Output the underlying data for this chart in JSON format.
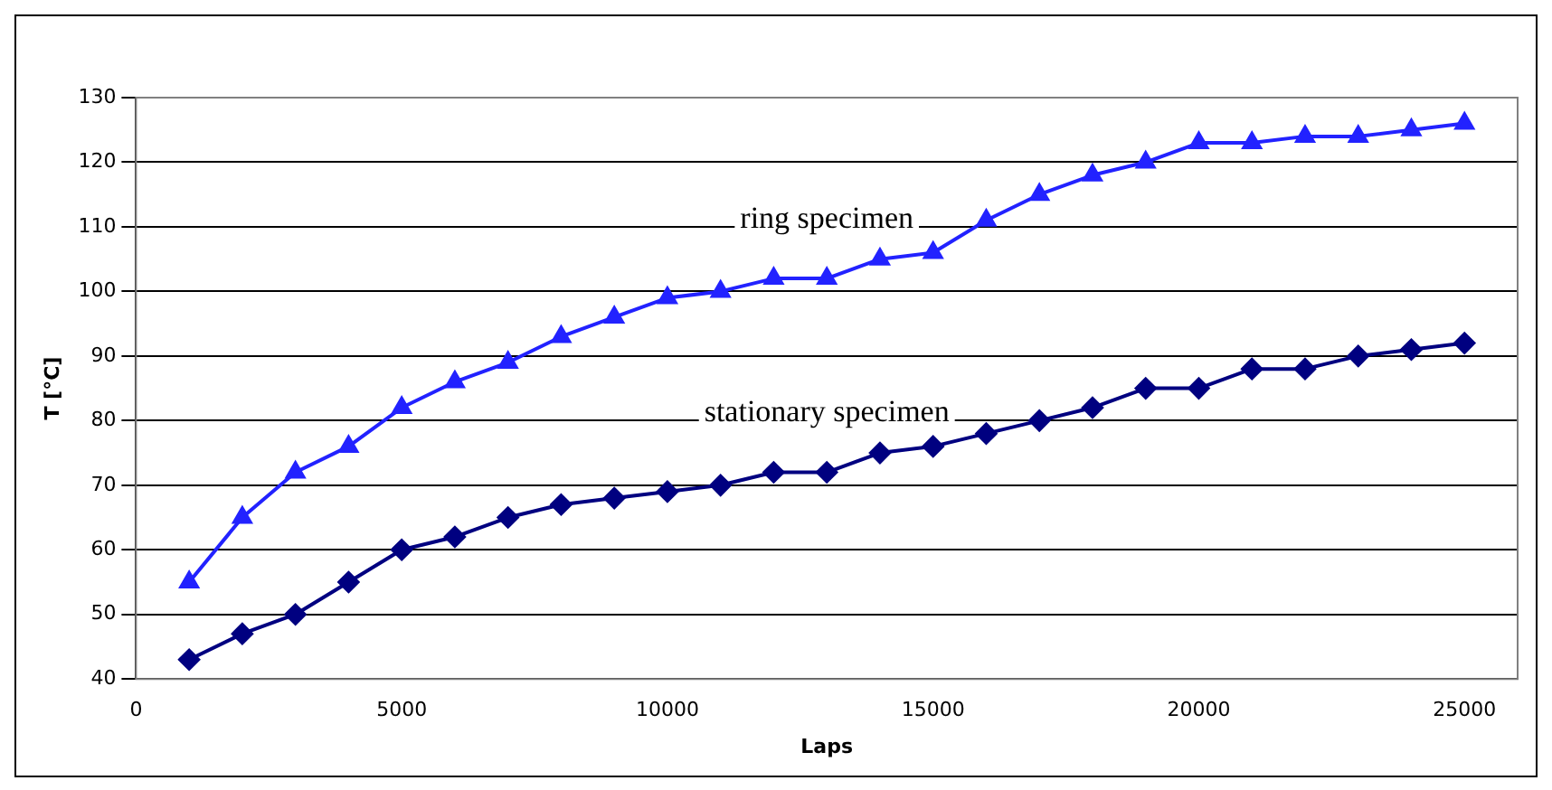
{
  "chart_data": {
    "type": "line",
    "xlabel": "Laps",
    "ylabel": "T [°C]",
    "x": [
      1000,
      2000,
      3000,
      4000,
      5000,
      6000,
      7000,
      8000,
      9000,
      10000,
      11000,
      12000,
      13000,
      14000,
      15000,
      16000,
      17000,
      18000,
      19000,
      20000,
      21000,
      22000,
      23000,
      24000,
      25000
    ],
    "series": [
      {
        "name": "ring specimen",
        "color": "#2222ff",
        "marker": "triangle",
        "values": [
          55,
          65,
          72,
          76,
          82,
          86,
          89,
          93,
          96,
          99,
          100,
          102,
          102,
          105,
          106,
          111,
          115,
          118,
          120,
          123,
          123,
          124,
          124,
          125,
          126
        ]
      },
      {
        "name": "stationary specimen",
        "color": "#000080",
        "marker": "diamond",
        "values": [
          43,
          47,
          50,
          55,
          60,
          62,
          65,
          67,
          68,
          69,
          70,
          72,
          72,
          75,
          76,
          78,
          80,
          82,
          85,
          85,
          88,
          88,
          90,
          91,
          92
        ]
      }
    ],
    "xlim": [
      0,
      26000
    ],
    "xticks": [
      0,
      5000,
      10000,
      15000,
      20000,
      25000
    ],
    "ylim": [
      40,
      130
    ],
    "yticks": [
      40,
      50,
      60,
      70,
      80,
      90,
      100,
      110,
      120,
      130
    ],
    "grid": "y",
    "legend": false
  }
}
